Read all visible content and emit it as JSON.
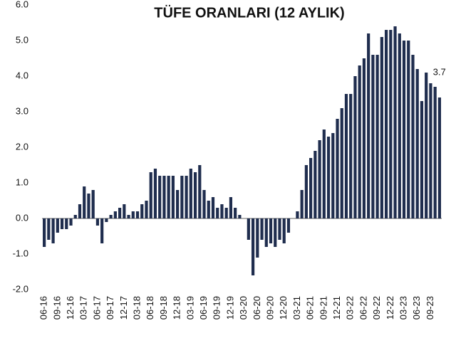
{
  "chart_data": {
    "type": "bar",
    "title": "TÜFE ORANLARI (12 AYLIK)",
    "categories": [
      "06-16",
      null,
      null,
      "09-16",
      null,
      null,
      "12-16",
      null,
      null,
      "03-17",
      null,
      null,
      "06-17",
      null,
      null,
      "09-17",
      null,
      null,
      "12-17",
      null,
      null,
      "03-18",
      null,
      null,
      "06-18",
      null,
      null,
      "09-18",
      null,
      null,
      "12-18",
      null,
      null,
      "03-19",
      null,
      null,
      "06-19",
      null,
      null,
      "09-19",
      null,
      null,
      "12-19",
      null,
      null,
      "03-20",
      null,
      null,
      "06-20",
      null,
      null,
      "09-20",
      null,
      null,
      "12-20",
      null,
      null,
      "03-21",
      null,
      null,
      "06-21",
      null,
      null,
      "09-21",
      null,
      null,
      "12-21",
      null,
      null,
      "03-22",
      null,
      null,
      "06-22",
      null,
      null,
      "09-22",
      null,
      null,
      "12-22",
      null,
      null,
      "03-23",
      null,
      null,
      "06-23",
      null,
      null,
      "09-23",
      null,
      null
    ],
    "values": [
      -0.8,
      -0.6,
      -0.7,
      -0.4,
      -0.3,
      -0.3,
      -0.2,
      0.1,
      0.4,
      0.9,
      0.7,
      0.8,
      -0.2,
      -0.7,
      -0.1,
      0.1,
      0.2,
      0.3,
      0.4,
      0.1,
      0.2,
      0.2,
      0.4,
      0.5,
      1.3,
      1.4,
      1.2,
      1.2,
      1.2,
      1.2,
      0.8,
      1.2,
      1.2,
      1.4,
      1.3,
      1.5,
      0.8,
      0.5,
      0.6,
      0.3,
      0.4,
      0.3,
      0.6,
      0.3,
      0.1,
      0.0,
      -0.6,
      -1.6,
      -1.1,
      -0.6,
      -0.8,
      -0.7,
      -0.8,
      -0.6,
      -0.7,
      -0.4,
      0.0,
      0.2,
      0.8,
      1.5,
      1.7,
      1.9,
      2.2,
      2.5,
      2.3,
      2.4,
      2.8,
      3.1,
      3.5,
      3.5,
      4.0,
      4.3,
      4.5,
      5.2,
      4.6,
      4.6,
      5.1,
      5.3,
      5.3,
      5.4,
      5.2,
      5.0,
      5.0,
      4.6,
      4.2,
      3.3,
      4.1,
      3.8,
      3.7,
      3.4
    ],
    "value_labels": [
      null,
      null,
      null,
      null,
      null,
      null,
      null,
      null,
      null,
      null,
      null,
      null,
      null,
      null,
      null,
      null,
      null,
      null,
      null,
      null,
      null,
      null,
      null,
      null,
      null,
      null,
      null,
      null,
      null,
      null,
      null,
      null,
      null,
      null,
      null,
      null,
      null,
      null,
      null,
      null,
      null,
      null,
      null,
      null,
      null,
      null,
      null,
      null,
      null,
      null,
      null,
      null,
      null,
      null,
      null,
      null,
      null,
      null,
      null,
      null,
      null,
      null,
      null,
      null,
      null,
      null,
      null,
      null,
      null,
      null,
      null,
      null,
      null,
      null,
      null,
      null,
      null,
      null,
      null,
      null,
      null,
      null,
      null,
      null,
      null,
      null,
      null,
      null,
      "3.7",
      null
    ],
    "color": "#1f2d4e",
    "ylim": [
      -2,
      6
    ],
    "yticks": [
      {
        "value": 6,
        "label": "6.0"
      },
      {
        "value": 5,
        "label": "5.0"
      },
      {
        "value": 4,
        "label": "4.0"
      },
      {
        "value": 3,
        "label": "3.0"
      },
      {
        "value": 2,
        "label": "2.0"
      },
      {
        "value": 1,
        "label": "1.0"
      },
      {
        "value": 0,
        "label": "0.0"
      },
      {
        "value": -1,
        "label": "-1.0"
      },
      {
        "value": -2,
        "label": "-2.0"
      }
    ],
    "grid": false
  }
}
